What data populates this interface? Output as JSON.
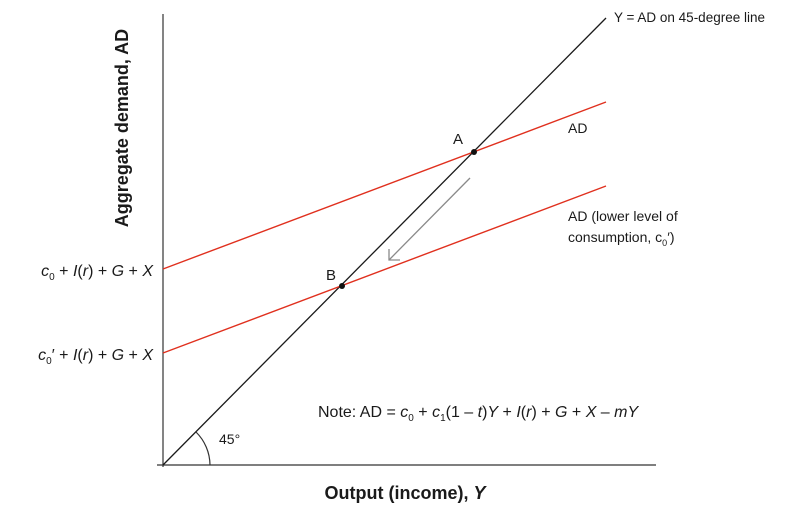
{
  "diagram": {
    "y_axis_label": "Aggregate demand, AD",
    "x_axis_label_main": "Output (income), ",
    "x_axis_label_var": "Y",
    "line_45_label": "Y = AD on 45-degree line",
    "angle_label": "45°",
    "ad_high_label": "AD",
    "ad_low_label_line1": "AD (lower level of",
    "ad_low_label_line2_pre": "consumption, c",
    "ad_low_label_line2_sub": "0",
    "ad_low_label_line2_post": "′)",
    "point_a": "A",
    "point_b": "B",
    "intercept_high": {
      "c": "c",
      "sub": "0",
      "rest1": " + ",
      "i": "I",
      "rest2": "(",
      "r": "r",
      "rest3": ") + ",
      "g": "G",
      "rest4": " + ",
      "x": "X"
    },
    "intercept_low": {
      "c": "c",
      "sub": "0",
      "prime": "′",
      "rest1": " + ",
      "i": "I",
      "rest2": "(",
      "r": "r",
      "rest3": ") + ",
      "g": "G",
      "rest4": " + ",
      "x": "X"
    },
    "note": {
      "prefix": "Note: AD = ",
      "c0": "c",
      "c0_sub": "0",
      "plus1": " + ",
      "c1": "c",
      "c1_sub": "1",
      "paren": "(1 – ",
      "t": "t",
      "close": ")",
      "y": "Y",
      "plus2": " + ",
      "i": "I",
      "open_r": "(",
      "r": "r",
      "close_r": ")",
      "plus3": " + ",
      "g": "G",
      "plus4": " + ",
      "x": "X",
      "minus": " – ",
      "m": "m",
      "y2": "Y"
    }
  },
  "colors": {
    "ad_lines": "#e0301e",
    "diagonal": "#1a1a1a",
    "arrow": "#8a8a8a"
  }
}
